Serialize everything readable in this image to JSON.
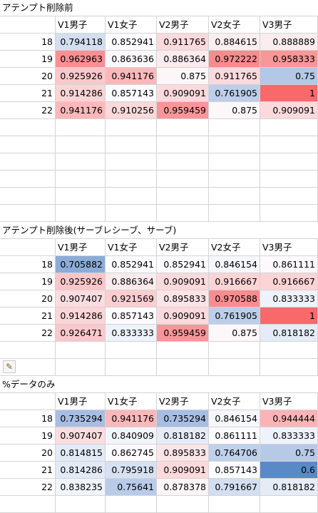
{
  "columns": [
    "V1男子",
    "V1女子",
    "V2男子",
    "V2女子",
    "V3男子"
  ],
  "tables": [
    {
      "title": "アテンプト削除前",
      "rows": [
        {
          "label": "18",
          "cells": [
            {
              "v": "0.794118",
              "c": "#d3dff0"
            },
            {
              "v": "0.852941",
              "c": "#fcfcff"
            },
            {
              "v": "0.911765",
              "c": "#fbd9dc"
            },
            {
              "v": "0.884615",
              "c": "#fbeef1"
            },
            {
              "v": "0.888889",
              "c": "#fbecee"
            }
          ]
        },
        {
          "label": "19",
          "cells": [
            {
              "v": "0.962963",
              "c": "#f98f93"
            },
            {
              "v": "0.863636",
              "c": "#fbf8fb"
            },
            {
              "v": "0.886364",
              "c": "#fbebee"
            },
            {
              "v": "0.972222",
              "c": "#f98b8e"
            },
            {
              "v": "0.958333",
              "c": "#f99698"
            }
          ]
        },
        {
          "label": "20",
          "cells": [
            {
              "v": "0.925926",
              "c": "#fac8cb"
            },
            {
              "v": "0.941176",
              "c": "#fab8bb"
            },
            {
              "v": "0.875",
              "c": "#fcf6f8"
            },
            {
              "v": "0.911765",
              "c": "#fbd9dc"
            },
            {
              "v": "0.75",
              "c": "#b3c7e6"
            }
          ]
        },
        {
          "label": "21",
          "cells": [
            {
              "v": "0.914286",
              "c": "#fbd4d6"
            },
            {
              "v": "0.857143",
              "c": "#fcfcff"
            },
            {
              "v": "0.909091",
              "c": "#fbd9dc"
            },
            {
              "v": "0.761905",
              "c": "#bccee9"
            },
            {
              "v": "1",
              "c": "#f8696b"
            }
          ]
        },
        {
          "label": "22",
          "cells": [
            {
              "v": "0.941176",
              "c": "#fab8bb"
            },
            {
              "v": "0.910256",
              "c": "#fbd8da"
            },
            {
              "v": "0.959459",
              "c": "#f99598"
            },
            {
              "v": "0.875",
              "c": "#fcf7f9"
            },
            {
              "v": "0.909091",
              "c": "#fbd9dc"
            }
          ]
        }
      ]
    },
    {
      "title": "アテンプト削除後(サーブレシーブ、サーブ)",
      "rows": [
        {
          "label": "18",
          "cells": [
            {
              "v": "0.705882",
              "c": "#8cacd8"
            },
            {
              "v": "0.852941",
              "c": "#fcfcff"
            },
            {
              "v": "0.852941",
              "c": "#fcfcff"
            },
            {
              "v": "0.846154",
              "c": "#f5f7fc"
            },
            {
              "v": "0.861111",
              "c": "#fcfafd"
            }
          ]
        },
        {
          "label": "19",
          "cells": [
            {
              "v": "0.925926",
              "c": "#fac6c9"
            },
            {
              "v": "0.886364",
              "c": "#fbebee"
            },
            {
              "v": "0.909091",
              "c": "#fbd9dc"
            },
            {
              "v": "0.916667",
              "c": "#fbd4d6"
            },
            {
              "v": "0.916667",
              "c": "#fbd4d6"
            }
          ]
        },
        {
          "label": "20",
          "cells": [
            {
              "v": "0.907407",
              "c": "#fbdcdf"
            },
            {
              "v": "0.921569",
              "c": "#fbcdd0"
            },
            {
              "v": "0.895833",
              "c": "#fbe4e7"
            },
            {
              "v": "0.970588",
              "c": "#f98c8f"
            },
            {
              "v": "0.833333",
              "c": "#eef2fa"
            }
          ]
        },
        {
          "label": "21",
          "cells": [
            {
              "v": "0.914286",
              "c": "#fbd5d8"
            },
            {
              "v": "0.857143",
              "c": "#fcfcff"
            },
            {
              "v": "0.909091",
              "c": "#fbd9dc"
            },
            {
              "v": "0.761905",
              "c": "#bccee9"
            },
            {
              "v": "1",
              "c": "#f8696b"
            }
          ]
        },
        {
          "label": "22",
          "cells": [
            {
              "v": "0.926471",
              "c": "#fac8cb"
            },
            {
              "v": "0.833333",
              "c": "#eef2fa"
            },
            {
              "v": "0.959459",
              "c": "#f99598"
            },
            {
              "v": "0.875",
              "c": "#fcf7f9"
            },
            {
              "v": "0.818182",
              "c": "#e5ecf7"
            }
          ]
        }
      ]
    },
    {
      "title": "%データのみ",
      "rows": [
        {
          "label": "18",
          "cells": [
            {
              "v": "0.735294",
              "c": "#a7bee2"
            },
            {
              "v": "0.941176",
              "c": "#fab8bb"
            },
            {
              "v": "0.735294",
              "c": "#a7bee2"
            },
            {
              "v": "0.846154",
              "c": "#f5f7fc"
            },
            {
              "v": "0.944444",
              "c": "#fab4b7"
            }
          ]
        },
        {
          "label": "19",
          "cells": [
            {
              "v": "0.907407",
              "c": "#fbdcdf"
            },
            {
              "v": "0.840909",
              "c": "#f2f5fb"
            },
            {
              "v": "0.818182",
              "c": "#e5ecf7"
            },
            {
              "v": "0.861111",
              "c": "#fcfafd"
            },
            {
              "v": "0.833333",
              "c": "#eef2fa"
            }
          ]
        },
        {
          "label": "20",
          "cells": [
            {
              "v": "0.814815",
              "c": "#e3eaf6"
            },
            {
              "v": "0.862745",
              "c": "#fcf9fc"
            },
            {
              "v": "0.895833",
              "c": "#fbe4e7"
            },
            {
              "v": "0.764706",
              "c": "#bed0ea"
            },
            {
              "v": "0.75",
              "c": "#b6c9e7"
            }
          ]
        },
        {
          "label": "21",
          "cells": [
            {
              "v": "0.814286",
              "c": "#e3eaf6"
            },
            {
              "v": "0.795918",
              "c": "#d6e1f1"
            },
            {
              "v": "0.909091",
              "c": "#fbd9dc"
            },
            {
              "v": "0.857143",
              "c": "#fcfcff"
            },
            {
              "v": "0.6",
              "c": "#5a8ac6"
            }
          ]
        },
        {
          "label": "22",
          "cells": [
            {
              "v": "0.838235",
              "c": "#f0f4fb"
            },
            {
              "v": "0.75641",
              "c": "#b9cbe8"
            },
            {
              "v": "0.878378",
              "c": "#fcf4f7"
            },
            {
              "v": "0.791667",
              "c": "#d3dff0"
            },
            {
              "v": "0.818182",
              "c": "#e5ecf7"
            }
          ]
        }
      ]
    }
  ]
}
